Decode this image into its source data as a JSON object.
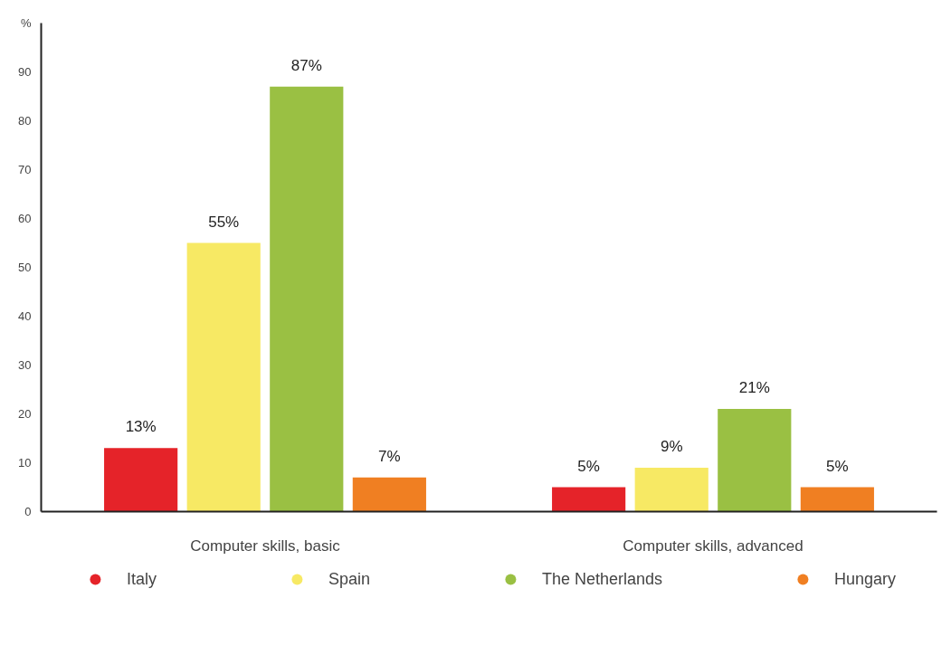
{
  "chart_data": {
    "type": "bar",
    "categories": [
      "Computer skills, basic",
      "Computer skills, advanced"
    ],
    "series": [
      {
        "name": "Italy",
        "color": "#e52329",
        "values": [
          13,
          5
        ],
        "value_labels": [
          "13%",
          "5%"
        ]
      },
      {
        "name": "Spain",
        "color": "#f7e964",
        "values": [
          55,
          9
        ],
        "value_labels": [
          "55%",
          "9%"
        ]
      },
      {
        "name": "The Netherlands",
        "color": "#9ac043",
        "values": [
          87,
          21
        ],
        "value_labels": [
          "87%",
          "21%"
        ]
      },
      {
        "name": "Hungary",
        "color": "#f07f22",
        "values": [
          7,
          5
        ],
        "value_labels": [
          "7%",
          "5%"
        ]
      }
    ],
    "ylim": [
      0,
      100
    ],
    "yticks": [
      0,
      10,
      20,
      30,
      40,
      50,
      60,
      70,
      80,
      90,
      {
        "value": 100,
        "label": "%"
      }
    ],
    "grid": false,
    "legend": "bottom"
  }
}
